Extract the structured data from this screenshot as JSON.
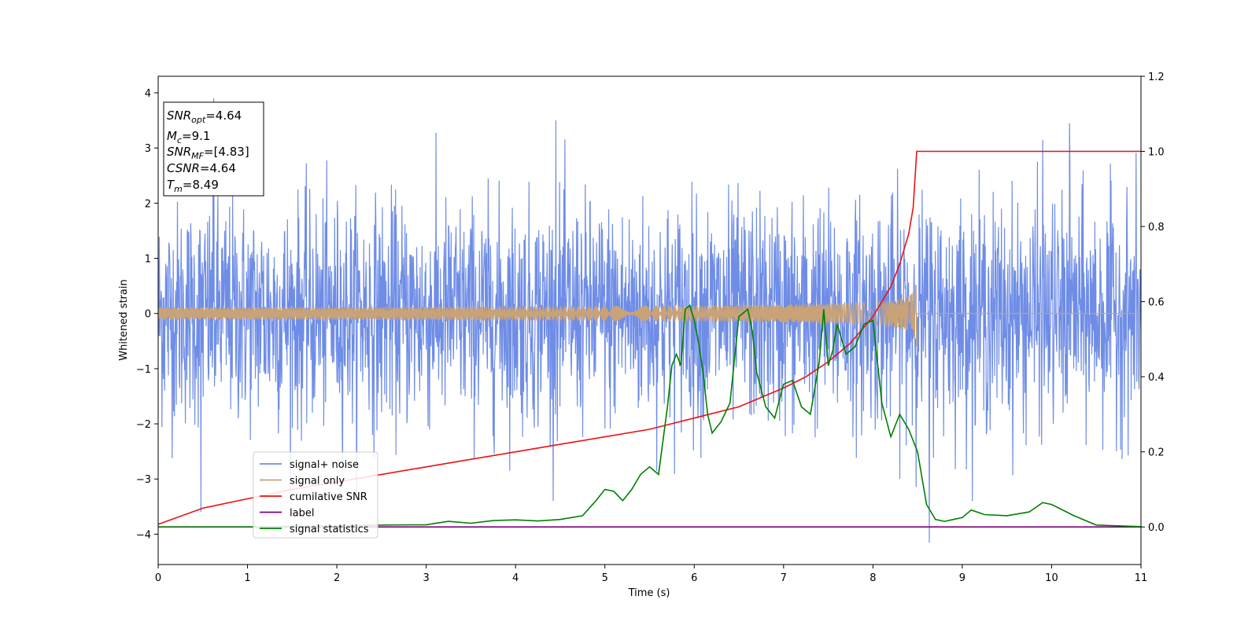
{
  "chart_data": {
    "type": "line",
    "xlabel": "Time (s)",
    "ylabel": "Whitened strain",
    "xlim": [
      0,
      11
    ],
    "ylim_left": [
      -4.55,
      4.3
    ],
    "ylim_right": [
      -0.1,
      1.2
    ],
    "xticks": [
      "0",
      "1",
      "2",
      "3",
      "4",
      "5",
      "6",
      "7",
      "8",
      "9",
      "10",
      "11"
    ],
    "yticks_left": [
      "−4",
      "−3",
      "−2",
      "−1",
      "0",
      "1",
      "2",
      "3",
      "4"
    ],
    "yticks_right": [
      "0.0",
      "0.2",
      "0.4",
      "0.6",
      "0.8",
      "1.0",
      "1.2"
    ],
    "grid": false,
    "legend_position": "lower-left",
    "info_box": {
      "snr_opt": "=4.64",
      "mc": "=9.1",
      "snr_mf": "=[4.83]",
      "csnr": "=4.64",
      "tm": "=8.49"
    },
    "series": [
      {
        "name": "signal+ noise",
        "color": "#6f8de6",
        "axis": "left",
        "description_only": true,
        "amplitude_band": [
          -2.2,
          2.6
        ],
        "extreme_peaks": [
          {
            "x": 0.62,
            "y": 3.9
          },
          {
            "x": 4.45,
            "y": 3.5
          },
          {
            "x": 9.9,
            "y": 3.15
          },
          {
            "x": 10.2,
            "y": 3.45
          },
          {
            "x": 8.63,
            "y": -4.15
          },
          {
            "x": 0.48,
            "y": -3.6
          }
        ]
      },
      {
        "name": "signal only",
        "color": "#c9a277",
        "axis": "left",
        "merger_time": 8.49,
        "peak_amplitude": 0.8
      },
      {
        "name": "cumilative SNR",
        "color": "#ee1111",
        "axis": "right",
        "x": [
          0,
          0.5,
          1,
          1.5,
          2,
          2.5,
          3,
          3.5,
          4,
          4.5,
          5,
          5.5,
          6,
          6.5,
          7,
          7.25,
          7.5,
          7.75,
          8,
          8.1,
          8.2,
          8.3,
          8.4,
          8.45,
          8.49,
          11
        ],
        "values": [
          0.007,
          0.05,
          0.075,
          0.1,
          0.12,
          0.14,
          0.16,
          0.18,
          0.2,
          0.22,
          0.24,
          0.26,
          0.29,
          0.32,
          0.37,
          0.4,
          0.44,
          0.49,
          0.56,
          0.6,
          0.64,
          0.7,
          0.78,
          0.85,
          1.0,
          1.0
        ]
      },
      {
        "name": "label",
        "color": "#800080",
        "axis": "right",
        "x": [
          0,
          11
        ],
        "values": [
          0.0,
          0.0
        ]
      },
      {
        "name": "signal statistics",
        "color": "#008000",
        "axis": "right",
        "x": [
          0,
          1,
          2,
          2.5,
          3,
          3.25,
          3.5,
          3.75,
          4,
          4.25,
          4.5,
          4.75,
          4.9,
          5.0,
          5.1,
          5.2,
          5.3,
          5.4,
          5.5,
          5.6,
          5.7,
          5.75,
          5.8,
          5.85,
          5.9,
          5.95,
          6.0,
          6.05,
          6.1,
          6.15,
          6.2,
          6.3,
          6.4,
          6.5,
          6.6,
          6.65,
          6.7,
          6.8,
          6.9,
          7.0,
          7.1,
          7.2,
          7.3,
          7.4,
          7.45,
          7.5,
          7.55,
          7.6,
          7.7,
          7.8,
          7.9,
          8.0,
          8.1,
          8.2,
          8.3,
          8.4,
          8.5,
          8.6,
          8.7,
          8.8,
          8.9,
          9.0,
          9.1,
          9.25,
          9.5,
          9.75,
          9.9,
          10.0,
          10.25,
          10.5,
          11
        ],
        "values": [
          0.0,
          0.0,
          0.003,
          0.005,
          0.006,
          0.015,
          0.01,
          0.017,
          0.019,
          0.016,
          0.02,
          0.03,
          0.07,
          0.1,
          0.095,
          0.07,
          0.1,
          0.14,
          0.16,
          0.14,
          0.32,
          0.43,
          0.46,
          0.43,
          0.58,
          0.59,
          0.55,
          0.49,
          0.41,
          0.3,
          0.25,
          0.28,
          0.33,
          0.56,
          0.58,
          0.52,
          0.41,
          0.32,
          0.29,
          0.38,
          0.39,
          0.32,
          0.3,
          0.44,
          0.58,
          0.43,
          0.47,
          0.54,
          0.46,
          0.48,
          0.54,
          0.55,
          0.33,
          0.24,
          0.3,
          0.26,
          0.2,
          0.06,
          0.02,
          0.015,
          0.02,
          0.025,
          0.045,
          0.033,
          0.03,
          0.04,
          0.065,
          0.06,
          0.03,
          0.005,
          0.001
        ]
      }
    ]
  }
}
